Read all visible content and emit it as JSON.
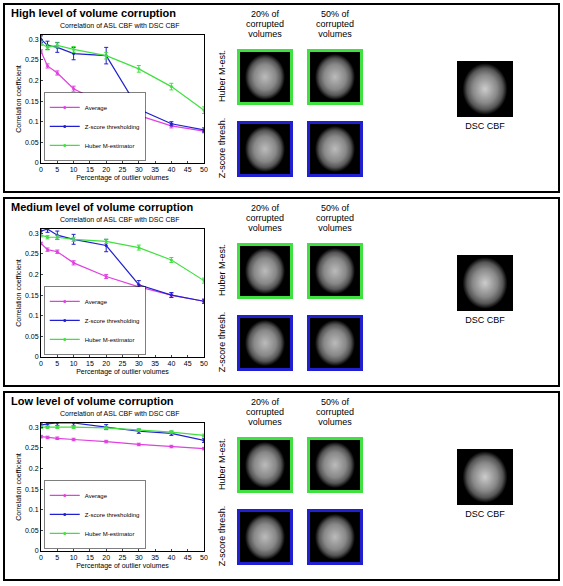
{
  "chart_data": [
    {
      "type": "line",
      "panel_title": "High level of volume corruption",
      "title": "Correlation of ASL CBF with DSC CBF",
      "x_label": "Percentage of outlier volumes",
      "y_label": "Correlation coefficient",
      "x": [
        0,
        2,
        5,
        10,
        20,
        30,
        40,
        50
      ],
      "xlim": [
        0,
        50
      ],
      "xticks": [
        0,
        5,
        10,
        15,
        20,
        25,
        30,
        35,
        40,
        45,
        50
      ],
      "ylim": [
        0,
        0.31
      ],
      "yticks": [
        0,
        0.05,
        0.1,
        0.15,
        0.2,
        0.25,
        0.3
      ],
      "grid": false,
      "legend": "lower left",
      "marker": "circle",
      "series": [
        {
          "name": "Average",
          "color": "#e040e0",
          "values": [
            0.27,
            0.235,
            0.218,
            0.18,
            0.14,
            0.115,
            0.09,
            0.077
          ],
          "error": [
            0.004,
            0.005,
            0.005,
            0.006,
            0.007,
            0.006,
            0.005,
            0.004
          ]
        },
        {
          "name": "Z-score thresholding",
          "color": "#2020d0",
          "values": [
            0.3,
            0.285,
            0.28,
            0.265,
            0.26,
            0.13,
            0.095,
            0.08
          ],
          "error": [
            0.008,
            0.01,
            0.012,
            0.015,
            0.02,
            0.01,
            0.005,
            0.005
          ]
        },
        {
          "name": "Huber M-estimator",
          "color": "#40e040",
          "values": [
            0.29,
            0.28,
            0.285,
            0.275,
            0.26,
            0.228,
            0.185,
            0.128
          ],
          "error": [
            0.005,
            0.006,
            0.006,
            0.007,
            0.008,
            0.008,
            0.008,
            0.008
          ]
        }
      ]
    },
    {
      "type": "line",
      "panel_title": "Medium level of volume corruption",
      "title": "Correlation of ASL CBF with DSC CBF",
      "x_label": "Percentage of outlier volumes",
      "y_label": "Correlation coefficient",
      "x": [
        0,
        2,
        5,
        10,
        20,
        30,
        40,
        50
      ],
      "xlim": [
        0,
        50
      ],
      "xticks": [
        0,
        5,
        10,
        15,
        20,
        25,
        30,
        35,
        40,
        45,
        50
      ],
      "ylim": [
        0,
        0.31
      ],
      "yticks": [
        0,
        0.05,
        0.1,
        0.15,
        0.2,
        0.25,
        0.3
      ],
      "grid": false,
      "legend": "lower left",
      "marker": "circle",
      "series": [
        {
          "name": "Average",
          "color": "#e040e0",
          "values": [
            0.275,
            0.26,
            0.255,
            0.228,
            0.195,
            0.17,
            0.15,
            0.135
          ],
          "error": [
            0.003,
            0.004,
            0.004,
            0.005,
            0.005,
            0.005,
            0.005,
            0.005
          ]
        },
        {
          "name": "Z-score thresholding",
          "color": "#2020d0",
          "values": [
            0.305,
            0.31,
            0.295,
            0.285,
            0.27,
            0.175,
            0.15,
            0.135
          ],
          "error": [
            0.006,
            0.008,
            0.01,
            0.012,
            0.015,
            0.01,
            0.006,
            0.005
          ]
        },
        {
          "name": "Huber M-estimator",
          "color": "#40e040",
          "values": [
            0.295,
            0.29,
            0.29,
            0.285,
            0.28,
            0.265,
            0.235,
            0.185
          ],
          "error": [
            0.004,
            0.004,
            0.005,
            0.005,
            0.005,
            0.006,
            0.006,
            0.006
          ]
        }
      ]
    },
    {
      "type": "line",
      "panel_title": "Low level of volume corruption",
      "title": "Correlation of ASL CBF with DSC CBF",
      "x_label": "Percentage of outlier volumes",
      "y_label": "Correlation coefficient",
      "x": [
        0,
        2,
        5,
        10,
        20,
        30,
        40,
        50
      ],
      "xlim": [
        0,
        50
      ],
      "xticks": [
        0,
        5,
        10,
        15,
        20,
        25,
        30,
        35,
        40,
        45,
        50
      ],
      "ylim": [
        0,
        0.31
      ],
      "yticks": [
        0,
        0.05,
        0.1,
        0.15,
        0.2,
        0.25,
        0.3
      ],
      "grid": false,
      "legend": "lower left",
      "marker": "circle",
      "series": [
        {
          "name": "Average",
          "color": "#e040e0",
          "values": [
            0.277,
            0.275,
            0.273,
            0.27,
            0.265,
            0.258,
            0.253,
            0.248
          ],
          "error": [
            0.003,
            0.003,
            0.003,
            0.003,
            0.003,
            0.003,
            0.003,
            0.003
          ]
        },
        {
          "name": "Z-score thresholding",
          "color": "#2020d0",
          "values": [
            0.305,
            0.308,
            0.31,
            0.31,
            0.3,
            0.29,
            0.285,
            0.268
          ],
          "error": [
            0.005,
            0.006,
            0.006,
            0.007,
            0.006,
            0.005,
            0.005,
            0.005
          ]
        },
        {
          "name": "Huber M-estimator",
          "color": "#40e040",
          "values": [
            0.3,
            0.3,
            0.3,
            0.3,
            0.298,
            0.293,
            0.288,
            0.28
          ],
          "error": [
            0.003,
            0.003,
            0.003,
            0.003,
            0.003,
            0.003,
            0.003,
            0.003
          ]
        }
      ]
    }
  ],
  "images": {
    "column_heads": [
      "20% of corrupted volumes",
      "50% of corrupted volumes"
    ],
    "row_labels": [
      "Huber M-est.",
      "Z-score thresh."
    ],
    "reference_label": "DSC CBF"
  }
}
